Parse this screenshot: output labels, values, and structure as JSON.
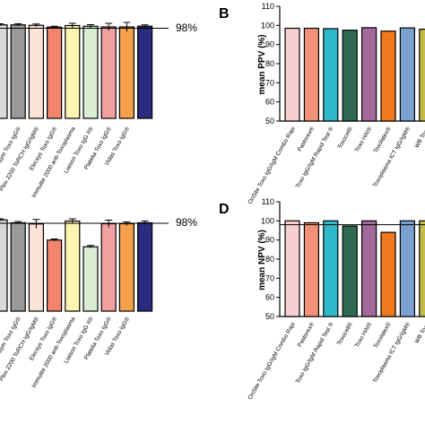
{
  "chart_data": [
    {
      "panel_label": "",
      "type": "bar",
      "categories": [
        "",
        "Axsym Toxo IgG®",
        "Plex 2200 ToRCH IgG/IgM®",
        "Elecsys Toxo IgG®",
        "Immulite 2000 anti-Toxoplasma",
        "Liaison Toxo IgG II®",
        "Platelia Toxo IgG®",
        "Vidas Toxo IgG®",
        ""
      ],
      "values": [
        99.5,
        99.5,
        99.3,
        98.5,
        99.2,
        98.9,
        98.6,
        98.6,
        98.9
      ],
      "errors": [
        0.5,
        0.5,
        0.6,
        0.4,
        1.0,
        0.7,
        1.6,
        2.0,
        0.6
      ],
      "colors": [
        "#d9d9d9",
        "#999999",
        "#fbe3d6",
        "#f2856b",
        "#fff3b0",
        "#d8edd4",
        "#f3a0a0",
        "#f6a04d",
        "#2b2b7f"
      ],
      "reference_line": 98,
      "reference_label": "98%"
    },
    {
      "panel_label": "B",
      "type": "bar",
      "categories": [
        "OnSite Toxo IgG/IgM Combo Rapi",
        "Pastorex®",
        "Toxo IgG/IgM Rapid Test ®",
        "Toxocel®",
        "Toxo HAI®",
        "Toxolatex®",
        "Toxoplasma ICT IgG/IgM®",
        "WB Toxo"
      ],
      "values": [
        98.5,
        98.5,
        98.3,
        97.5,
        98.8,
        97.0,
        98.7,
        98.0
      ],
      "colors": [
        "#f7cfd3",
        "#f2917a",
        "#2fb8c9",
        "#2f6b52",
        "#a3689c",
        "#f2781e",
        "#7b9fcf",
        "#c4bc4a"
      ],
      "ylabel": "mean PPV (%)",
      "ylim": [
        50,
        110
      ],
      "yticks": [
        50,
        60,
        70,
        80,
        90,
        100,
        110
      ]
    },
    {
      "panel_label": "",
      "type": "bar",
      "categories": [
        "",
        "Axsym Toxo IgG®",
        "Plex 2200 ToRCH IgG/IgM®",
        "Elecsys Toxo IgG®",
        "Immulite 2000 anti-Toxoplasma",
        "Liaison Toxo IgG II®",
        "Platelia Toxo IgG®",
        "Vidas Toxo IgG®",
        ""
      ],
      "values": [
        99.5,
        98.2,
        97.7,
        90.5,
        99.0,
        87.5,
        97.8,
        97.8,
        98.2
      ],
      "errors": [
        0.5,
        0.6,
        2.0,
        0.5,
        1.0,
        0.6,
        1.6,
        0.8,
        0.8
      ],
      "colors": [
        "#d9d9d9",
        "#999999",
        "#fbe3d6",
        "#f2856b",
        "#fff3b0",
        "#d8edd4",
        "#f3a0a0",
        "#f6a04d",
        "#2b2b7f"
      ],
      "reference_line": 98,
      "reference_label": "98%"
    },
    {
      "panel_label": "D",
      "type": "bar",
      "categories": [
        "OnSite Toxo IgG/IgM Combo Rapi",
        "Pastorex®",
        "Toxo IgG/IgM Rapid Test ®",
        "Toxocell®",
        "Toxo HAI®",
        "Toxolatex®",
        "Toxoplasma ICT IgG/IgM®",
        "WB Toxo"
      ],
      "values": [
        100,
        99.0,
        100,
        97.3,
        100,
        94.0,
        100,
        100
      ],
      "colors": [
        "#f7cfd3",
        "#f2917a",
        "#2fb8c9",
        "#2f6b52",
        "#a3689c",
        "#f2781e",
        "#7b9fcf",
        "#c4bc4a"
      ],
      "ylabel": "mean NPV (%)",
      "ylim": [
        50,
        110
      ],
      "yticks": [
        50,
        60,
        70,
        80,
        90,
        100,
        110
      ],
      "reference_line": 98
    }
  ]
}
